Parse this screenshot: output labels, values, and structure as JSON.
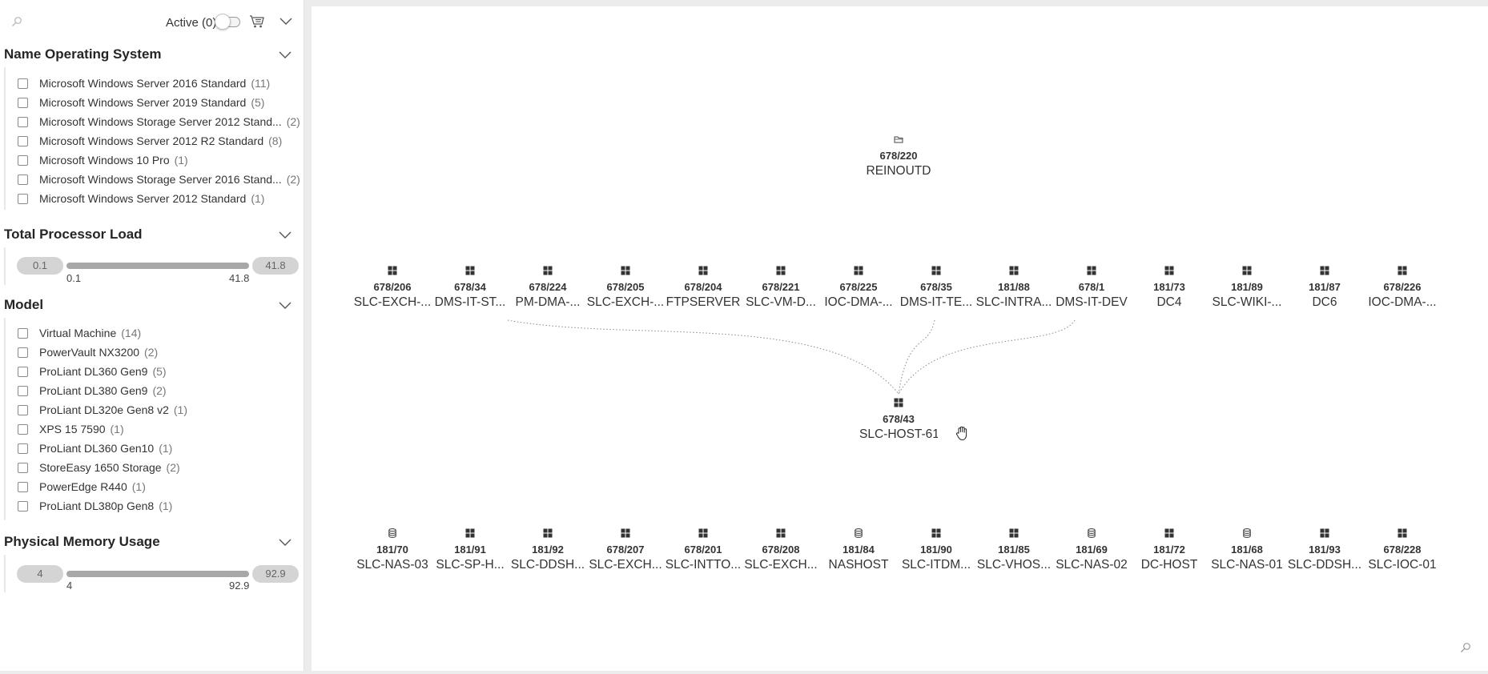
{
  "toolbar": {
    "active_label": "Active (0)"
  },
  "filters": {
    "os": {
      "title": "Name Operating System",
      "items": [
        {
          "label": "Microsoft Windows Server 2016 Standard",
          "count": "(11)"
        },
        {
          "label": "Microsoft Windows Server 2019 Standard",
          "count": "(5)"
        },
        {
          "label": "Microsoft Windows Storage Server 2012 Stand...",
          "count": "(2)"
        },
        {
          "label": "Microsoft Windows Server 2012 R2 Standard",
          "count": "(8)"
        },
        {
          "label": "Microsoft Windows 10 Pro",
          "count": "(1)"
        },
        {
          "label": "Microsoft Windows Storage Server 2016 Stand...",
          "count": "(2)"
        },
        {
          "label": "Microsoft Windows Server 2012 Standard",
          "count": "(1)"
        }
      ]
    },
    "processor": {
      "title": "Total Processor Load",
      "min": "0.1",
      "max": "41.8",
      "tick_min": "0.1",
      "tick_max": "41.8"
    },
    "model": {
      "title": "Model",
      "items": [
        {
          "label": "Virtual Machine",
          "count": "(14)"
        },
        {
          "label": "PowerVault NX3200",
          "count": "(2)"
        },
        {
          "label": "ProLiant DL360 Gen9",
          "count": "(5)"
        },
        {
          "label": "ProLiant DL380 Gen9",
          "count": "(2)"
        },
        {
          "label": "ProLiant DL320e Gen8 v2",
          "count": "(1)"
        },
        {
          "label": "XPS 15 7590",
          "count": "(1)"
        },
        {
          "label": "ProLiant DL360 Gen10",
          "count": "(1)"
        },
        {
          "label": "StoreEasy 1650 Storage",
          "count": "(2)"
        },
        {
          "label": "PowerEdge R440",
          "count": "(1)"
        },
        {
          "label": "ProLiant DL380p Gen8",
          "count": "(1)"
        }
      ]
    },
    "memory": {
      "title": "Physical Memory Usage",
      "min": "4",
      "max": "92.9",
      "tick_min": "4",
      "tick_max": "92.9"
    }
  },
  "graph": {
    "top": {
      "id": "678/220",
      "name": "REINOUTD",
      "icon": "folder-icon"
    },
    "hub": {
      "id": "678/43",
      "name": "SLC-HOST-61",
      "icon": "windows-icon"
    },
    "row1": [
      {
        "id": "678/206",
        "name": "SLC-EXCH-...",
        "icon": "windows-icon"
      },
      {
        "id": "678/34",
        "name": "DMS-IT-ST...",
        "icon": "windows-icon"
      },
      {
        "id": "678/224",
        "name": "PM-DMA-...",
        "icon": "windows-icon"
      },
      {
        "id": "678/205",
        "name": "SLC-EXCH-...",
        "icon": "windows-icon"
      },
      {
        "id": "678/204",
        "name": "FTPSERVER",
        "icon": "windows-icon"
      },
      {
        "id": "678/221",
        "name": "SLC-VM-D...",
        "icon": "windows-icon"
      },
      {
        "id": "678/225",
        "name": "IOC-DMA-...",
        "icon": "windows-icon"
      },
      {
        "id": "678/35",
        "name": "DMS-IT-TE...",
        "icon": "windows-icon"
      },
      {
        "id": "181/88",
        "name": "SLC-INTRA...",
        "icon": "windows-icon"
      },
      {
        "id": "678/1",
        "name": "DMS-IT-DEV",
        "icon": "windows-icon"
      },
      {
        "id": "181/73",
        "name": "DC4",
        "icon": "windows-icon"
      },
      {
        "id": "181/89",
        "name": "SLC-WIKI-...",
        "icon": "windows-icon"
      },
      {
        "id": "181/87",
        "name": "DC6",
        "icon": "windows-icon"
      },
      {
        "id": "678/226",
        "name": "IOC-DMA-...",
        "icon": "windows-icon"
      }
    ],
    "row2": [
      {
        "id": "181/70",
        "name": "SLC-NAS-03",
        "icon": "database-icon"
      },
      {
        "id": "181/91",
        "name": "SLC-SP-H...",
        "icon": "windows-icon"
      },
      {
        "id": "181/92",
        "name": "SLC-DDSH...",
        "icon": "windows-icon"
      },
      {
        "id": "678/207",
        "name": "SLC-EXCH...",
        "icon": "windows-icon"
      },
      {
        "id": "678/201",
        "name": "SLC-INTTO...",
        "icon": "windows-icon"
      },
      {
        "id": "678/208",
        "name": "SLC-EXCH...",
        "icon": "windows-icon"
      },
      {
        "id": "181/84",
        "name": "NASHOST",
        "icon": "database-icon"
      },
      {
        "id": "181/90",
        "name": "SLC-ITDM...",
        "icon": "windows-icon"
      },
      {
        "id": "181/85",
        "name": "SLC-VHOS...",
        "icon": "windows-icon"
      },
      {
        "id": "181/69",
        "name": "SLC-NAS-02",
        "icon": "database-icon"
      },
      {
        "id": "181/72",
        "name": "DC-HOST",
        "icon": "windows-icon"
      },
      {
        "id": "181/68",
        "name": "SLC-NAS-01",
        "icon": "database-icon"
      },
      {
        "id": "181/93",
        "name": "SLC-DDSH...",
        "icon": "windows-icon"
      },
      {
        "id": "678/228",
        "name": "SLC-IOC-01",
        "icon": "windows-icon"
      }
    ]
  }
}
